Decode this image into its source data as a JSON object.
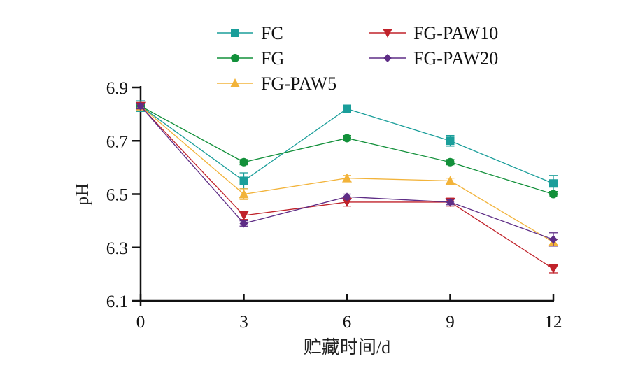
{
  "chart_data": {
    "type": "line",
    "title": "",
    "xlabel": "贮藏时间/d",
    "ylabel": "pH",
    "x": [
      0,
      3,
      6,
      9,
      12
    ],
    "xticks": [
      "0",
      "3",
      "6",
      "9",
      "12"
    ],
    "yticks": [
      "6.1",
      "6.3",
      "6.5",
      "6.7",
      "6.9"
    ],
    "xlim": [
      0,
      12
    ],
    "ylim": [
      6.1,
      6.9
    ],
    "grid": false,
    "legend_position": "top",
    "series": [
      {
        "name": "FC",
        "marker": "square",
        "color": "#1a9e9a",
        "values": [
          6.83,
          6.55,
          6.82,
          6.7,
          6.54
        ],
        "errors": [
          0.02,
          0.03,
          0.008,
          0.02,
          0.03
        ]
      },
      {
        "name": "FG",
        "marker": "circle",
        "color": "#12903a",
        "values": [
          6.83,
          6.62,
          6.71,
          6.62,
          6.5
        ],
        "errors": [
          0.01,
          0.01,
          0.01,
          0.01,
          0.01
        ]
      },
      {
        "name": "FG-PAW5",
        "marker": "triangle-up",
        "color": "#f2b33a",
        "values": [
          6.83,
          6.5,
          6.56,
          6.55,
          6.32
        ],
        "errors": [
          0.01,
          0.02,
          0.01,
          0.01,
          0.01
        ]
      },
      {
        "name": "FG-PAW10",
        "marker": "triangle-down",
        "color": "#c0222a",
        "values": [
          6.83,
          6.42,
          6.47,
          6.47,
          6.22
        ],
        "errors": [
          0.01,
          0.015,
          0.015,
          0.015,
          0.015
        ]
      },
      {
        "name": "FG-PAW20",
        "marker": "diamond",
        "color": "#5e2d86",
        "values": [
          6.83,
          6.39,
          6.49,
          6.47,
          6.33
        ],
        "errors": [
          0.01,
          0.01,
          0.01,
          0.01,
          0.025
        ]
      }
    ]
  }
}
